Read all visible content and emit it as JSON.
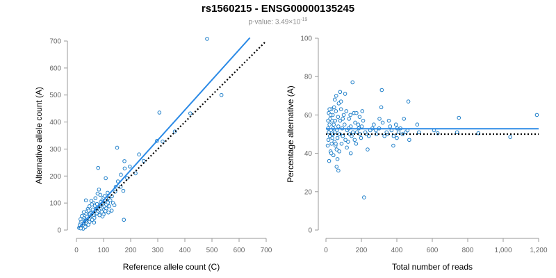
{
  "title": "rs1560215 - ENSG00000135245",
  "subtitle": {
    "prefix": "p-value: 3.49×10",
    "exponent": "-19"
  },
  "colors": {
    "points": "#1f7fc9",
    "fit_line": "#2b8ae6",
    "reference_line": "#000000",
    "axis": "#999999",
    "tick_text": "#666666"
  },
  "chart_data": [
    {
      "type": "scatter",
      "title": "",
      "xlabel": "Reference allele count (C)",
      "ylabel": "Alternative allele count (A)",
      "xlim": [
        0,
        700
      ],
      "ylim": [
        0,
        700
      ],
      "xticks": [
        0,
        100,
        200,
        300,
        400,
        500,
        600,
        700
      ],
      "yticks": [
        0,
        100,
        200,
        300,
        400,
        500,
        600,
        700
      ],
      "xtick_labels": [
        "0",
        "100",
        "200",
        "300",
        "400",
        "500",
        "600",
        "700"
      ],
      "ytick_labels": [
        "0",
        "100",
        "200",
        "300",
        "400",
        "500",
        "600",
        "700"
      ],
      "fit_line": [
        [
          10,
          10
        ],
        [
          640,
          712
        ]
      ],
      "reference_line": [
        [
          10,
          10
        ],
        [
          700,
          700
        ]
      ],
      "points": [
        [
          482,
          708
        ],
        [
          306,
          435
        ],
        [
          535,
          500
        ],
        [
          150,
          305
        ],
        [
          80,
          230
        ],
        [
          175,
          38
        ],
        [
          420,
          432
        ],
        [
          318,
          328
        ],
        [
          363,
          365
        ],
        [
          297,
          330
        ],
        [
          231,
          280
        ],
        [
          248,
          256
        ],
        [
          177,
          255
        ],
        [
          197,
          235
        ],
        [
          178,
          228
        ],
        [
          218,
          210
        ],
        [
          187,
          193
        ],
        [
          164,
          205
        ],
        [
          153,
          180
        ],
        [
          108,
          192
        ],
        [
          163,
          160
        ],
        [
          173,
          145
        ],
        [
          143,
          142
        ],
        [
          131,
          125
        ],
        [
          120,
          118
        ],
        [
          113,
          104
        ],
        [
          104,
          100
        ],
        [
          97,
          94
        ],
        [
          89,
          85
        ],
        [
          85,
          80
        ],
        [
          82,
          78
        ],
        [
          77,
          72
        ],
        [
          72,
          67
        ],
        [
          67,
          62
        ],
        [
          62,
          57
        ],
        [
          57,
          52
        ],
        [
          52,
          48
        ],
        [
          47,
          44
        ],
        [
          42,
          40
        ],
        [
          37,
          36
        ],
        [
          32,
          33
        ],
        [
          27,
          30
        ],
        [
          22,
          26
        ],
        [
          17,
          20
        ],
        [
          12,
          14
        ],
        [
          10,
          8
        ],
        [
          14,
          10
        ],
        [
          19,
          15
        ],
        [
          24,
          18
        ],
        [
          30,
          22
        ],
        [
          35,
          25
        ],
        [
          40,
          30
        ],
        [
          45,
          34
        ],
        [
          50,
          40
        ],
        [
          55,
          45
        ],
        [
          60,
          50
        ],
        [
          65,
          55
        ],
        [
          70,
          60
        ],
        [
          75,
          62
        ],
        [
          80,
          70
        ],
        [
          86,
          75
        ],
        [
          92,
          80
        ],
        [
          98,
          85
        ],
        [
          103,
          88
        ],
        [
          110,
          95
        ],
        [
          116,
          102
        ],
        [
          125,
          110
        ],
        [
          95,
          110
        ],
        [
          100,
          120
        ],
        [
          88,
          130
        ],
        [
          83,
          150
        ],
        [
          78,
          135
        ],
        [
          70,
          118
        ],
        [
          63,
          100
        ],
        [
          57,
          95
        ],
        [
          48,
          88
        ],
        [
          42,
          78
        ],
        [
          38,
          68
        ],
        [
          34,
          60
        ],
        [
          30,
          52
        ],
        [
          26,
          45
        ],
        [
          22,
          38
        ],
        [
          18,
          32
        ],
        [
          15,
          24
        ],
        [
          12,
          18
        ],
        [
          35,
          110
        ],
        [
          55,
          108
        ],
        [
          68,
          90
        ],
        [
          73,
          78
        ],
        [
          93,
          68
        ],
        [
          100,
          58
        ],
        [
          85,
          55
        ],
        [
          66,
          45
        ],
        [
          58,
          38
        ],
        [
          48,
          30
        ],
        [
          40,
          24
        ],
        [
          28,
          14
        ],
        [
          20,
          8
        ],
        [
          110,
          80
        ],
        [
          121,
          88
        ],
        [
          135,
          100
        ],
        [
          140,
          92
        ],
        [
          130,
          72
        ],
        [
          118,
          65
        ],
        [
          107,
          70
        ],
        [
          96,
          50
        ],
        [
          65,
          28
        ],
        [
          27,
          66
        ],
        [
          20,
          52
        ],
        [
          15,
          40
        ],
        [
          45,
          72
        ],
        [
          52,
          63
        ],
        [
          60,
          76
        ],
        [
          76,
          96
        ],
        [
          90,
          104
        ],
        [
          104,
          126
        ],
        [
          115,
          138
        ],
        [
          145,
          160
        ],
        [
          25,
          5
        ],
        [
          33,
          12
        ],
        [
          44,
          20
        ],
        [
          16,
          6
        ],
        [
          39,
          49
        ],
        [
          50,
          58
        ]
      ]
    },
    {
      "type": "scatter",
      "title": "",
      "xlabel": "Total number of reads",
      "ylabel": "Percentage alternative (A)",
      "xlim": [
        0,
        1200
      ],
      "ylim": [
        0,
        100
      ],
      "xticks": [
        0,
        200,
        400,
        600,
        800,
        1000,
        1200
      ],
      "yticks": [
        0,
        20,
        40,
        60,
        80,
        100
      ],
      "xtick_labels": [
        "0",
        "200",
        "400",
        "600",
        "800",
        "1,000",
        "1,200"
      ],
      "ytick_labels": [
        "0",
        "20",
        "40",
        "60",
        "80",
        "100"
      ],
      "fit_line": [
        [
          0,
          52.8
        ],
        [
          1200,
          52.8
        ]
      ],
      "reference_line": [
        [
          0,
          50
        ],
        [
          1200,
          50
        ]
      ],
      "points": [
        [
          1190,
          60
        ],
        [
          1040,
          48.5
        ],
        [
          860,
          50.5
        ],
        [
          750,
          58.5
        ],
        [
          740,
          51
        ],
        [
          630,
          50.5
        ],
        [
          610,
          52
        ],
        [
          525,
          51
        ],
        [
          515,
          55
        ],
        [
          470,
          47
        ],
        [
          465,
          67
        ],
        [
          450,
          51
        ],
        [
          440,
          58
        ],
        [
          420,
          53
        ],
        [
          410,
          51
        ],
        [
          400,
          48
        ],
        [
          395,
          55
        ],
        [
          380,
          44
        ],
        [
          370,
          52
        ],
        [
          355,
          57
        ],
        [
          345,
          50
        ],
        [
          330,
          49
        ],
        [
          320,
          56
        ],
        [
          315,
          73
        ],
        [
          312,
          64
        ],
        [
          300,
          53
        ],
        [
          285,
          50
        ],
        [
          270,
          55
        ],
        [
          250,
          52
        ],
        [
          235,
          42
        ],
        [
          228,
          50
        ],
        [
          215,
          17
        ],
        [
          210,
          57
        ],
        [
          205,
          62
        ],
        [
          198,
          48
        ],
        [
          190,
          59
        ],
        [
          185,
          53
        ],
        [
          175,
          51
        ],
        [
          170,
          45
        ],
        [
          165,
          56
        ],
        [
          158,
          61
        ],
        [
          150,
          77
        ],
        [
          145,
          49
        ],
        [
          140,
          54
        ],
        [
          135,
          50
        ],
        [
          130,
          58
        ],
        [
          125,
          46
        ],
        [
          120,
          52
        ],
        [
          115,
          62
        ],
        [
          110,
          47
        ],
        [
          105,
          55
        ],
        [
          100,
          60
        ],
        [
          95,
          49
        ],
        [
          92,
          53
        ],
        [
          88,
          45
        ],
        [
          85,
          63
        ],
        [
          80,
          57
        ],
        [
          78,
          50
        ],
        [
          75,
          41
        ],
        [
          72,
          66
        ],
        [
          70,
          54
        ],
        [
          68,
          59
        ],
        [
          65,
          48
        ],
        [
          62,
          52
        ],
        [
          60,
          33
        ],
        [
          58,
          70
        ],
        [
          56,
          62
        ],
        [
          54,
          44
        ],
        [
          52,
          57
        ],
        [
          50,
          51
        ],
        [
          48,
          46
        ],
        [
          46,
          64
        ],
        [
          44,
          55
        ],
        [
          42,
          39
        ],
        [
          40,
          53
        ],
        [
          38,
          60
        ],
        [
          36,
          48
        ],
        [
          34,
          57
        ],
        [
          32,
          45
        ],
        [
          30,
          63
        ],
        [
          28,
          52
        ],
        [
          26,
          41
        ],
        [
          24,
          58
        ],
        [
          22,
          49
        ],
        [
          20,
          55
        ],
        [
          18,
          36
        ],
        [
          16,
          61
        ],
        [
          14,
          47
        ],
        [
          12,
          53
        ],
        [
          10,
          44
        ],
        [
          12,
          57
        ],
        [
          20,
          63
        ],
        [
          30,
          40
        ],
        [
          40,
          50
        ],
        [
          55,
          45
        ],
        [
          65,
          37
        ],
        [
          85,
          67
        ],
        [
          95,
          58
        ],
        [
          118,
          43
        ],
        [
          128,
          53
        ],
        [
          138,
          60
        ],
        [
          152,
          51
        ],
        [
          162,
          47
        ],
        [
          172,
          61
        ],
        [
          182,
          55
        ],
        [
          192,
          50
        ],
        [
          202,
          54
        ],
        [
          222,
          51
        ],
        [
          242,
          49
        ],
        [
          262,
          53
        ],
        [
          282,
          52
        ],
        [
          302,
          58
        ],
        [
          342,
          51
        ],
        [
          362,
          54
        ],
        [
          382,
          49
        ],
        [
          402,
          53
        ],
        [
          432,
          50
        ],
        [
          460,
          52
        ],
        [
          80,
          72
        ],
        [
          70,
          31
        ],
        [
          26,
          60
        ],
        [
          16,
          51
        ],
        [
          50,
          68
        ],
        [
          108,
          71
        ],
        [
          60,
          42
        ],
        [
          140,
          40
        ]
      ]
    }
  ]
}
